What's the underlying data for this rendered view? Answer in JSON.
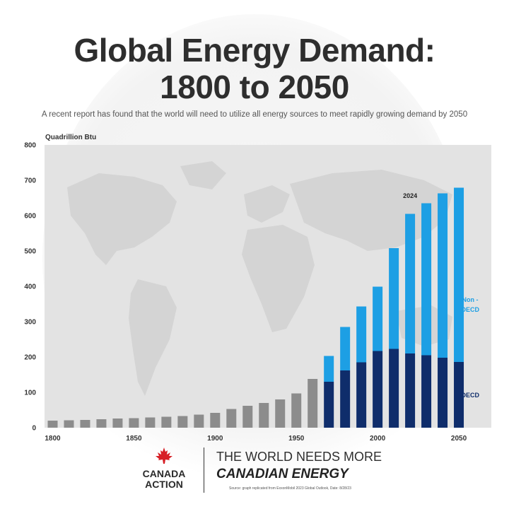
{
  "header": {
    "title_line1": "Global Energy Demand:",
    "title_line2": "1800 to 2050",
    "subtitle": "A recent report has found that the world will need to utilize all energy sources to meet rapidly growing demand by 2050"
  },
  "chart_data": {
    "type": "bar",
    "stacked": true,
    "title": "Global Energy Demand: 1800 to 2050",
    "subtitle": "A recent report has found that the world will need to utilize all energy sources to meet rapidly growing demand by 2050",
    "ylabel": "Quadrillion Btu",
    "xlabel": "",
    "ylim": [
      0,
      800
    ],
    "yticks": [
      0,
      100,
      200,
      300,
      400,
      500,
      600,
      700,
      800
    ],
    "xticks": [
      1800,
      1850,
      1900,
      1950,
      2000,
      2050
    ],
    "grid": false,
    "background": "world map",
    "historical": {
      "x": [
        1800,
        1810,
        1820,
        1830,
        1840,
        1850,
        1860,
        1870,
        1880,
        1890,
        1900,
        1910,
        1920,
        1930,
        1940,
        1950,
        1960
      ],
      "values": [
        20,
        21,
        22,
        24,
        26,
        27,
        29,
        31,
        33,
        37,
        42,
        53,
        62,
        70,
        80,
        97,
        138
      ],
      "color": "#8c8c8c"
    },
    "series_x": [
      1970,
      1980,
      1990,
      2000,
      2010,
      2020,
      2030,
      2040,
      2050
    ],
    "series": [
      {
        "name": "OECD",
        "values": [
          130,
          162,
          185,
          217,
          223,
          210,
          205,
          198,
          186
        ],
        "color": "#0f2d6b"
      },
      {
        "name": "Non - OECD",
        "values": [
          73,
          123,
          158,
          182,
          285,
          395,
          430,
          465,
          493
        ],
        "color": "#1d9fe4"
      }
    ],
    "annotations": [
      {
        "text": "2024",
        "x": 2020,
        "y": 650
      }
    ]
  },
  "branding": {
    "logo_line1": "CANADA",
    "logo_line2": "ACTION",
    "tagline": "THE WORLD NEEDS MORE",
    "tagline_bold": "CANADIAN ENERGY",
    "source": "Source: graph replicated from ExxonMobil 2023 Global Outlook, Date: 8/28/23"
  },
  "colors": {
    "historical": "#8c8c8c",
    "oecd": "#0f2d6b",
    "non_oecd": "#1d9fe4",
    "plot_bg": "#e3e3e3",
    "map": "#d4d4d4",
    "maple_leaf": "#d71f26"
  }
}
